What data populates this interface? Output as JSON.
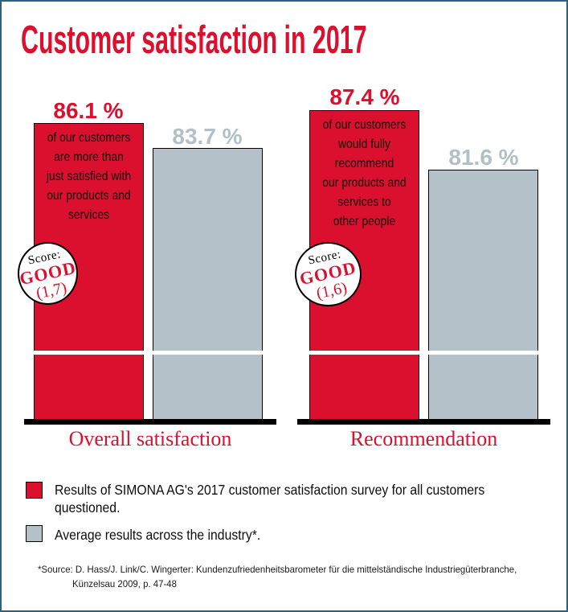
{
  "title": "Customer satisfaction in 2017",
  "colors": {
    "accent_red": "#db0f2e",
    "industry_gray": "#b4c1c8",
    "frame_blue": "#2f6080",
    "baseline_black": "#000000"
  },
  "chart_data": {
    "type": "bar",
    "title": "Customer satisfaction in 2017",
    "categories": [
      "Overall satisfaction",
      "Recommendation"
    ],
    "series": [
      {
        "name": "Results of SIMONA AG's 2017 customer satisfaction survey for all customers questioned.",
        "color": "#db0f2e",
        "values": [
          86.1,
          87.4
        ]
      },
      {
        "name": "Average results across the industry*.",
        "color": "#b4c1c8",
        "values": [
          83.7,
          81.6
        ]
      }
    ],
    "value_labels": [
      [
        "86.1 %",
        "83.7 %"
      ],
      [
        "87.4 %",
        "81.6 %"
      ]
    ],
    "bar_annotations": [
      "of our customers\nare more than\njust satisfied with\nour products and\nservices",
      "of our customers\nwould fully\nrecommend\nour products and\nservices to\nother people"
    ],
    "score_badges": [
      {
        "prefix": "Score:",
        "rating": "GOOD",
        "value": "(1,7)"
      },
      {
        "prefix": "Score:",
        "rating": "GOOD",
        "value": "(1,6)"
      }
    ],
    "axis_break": true,
    "ylabel": "",
    "xlabel": "",
    "legend_position": "bottom",
    "grid": false
  },
  "legend": {
    "items": [
      {
        "swatch_color": "#db0f2e",
        "label": "Results of SIMONA AG's 2017 customer satisfaction survey for all customers\nquestioned."
      },
      {
        "swatch_color": "#b4c1c8",
        "label": "Average results across the industry*."
      }
    ]
  },
  "footnote": {
    "line1": "*Source: D. Hass/J. Link/C. Wingerter: Kundenzufriedenheitsbarometer für die mittelständische Industriegüterbranche,",
    "line2": "Künzelsau 2009, p. 47-48"
  }
}
